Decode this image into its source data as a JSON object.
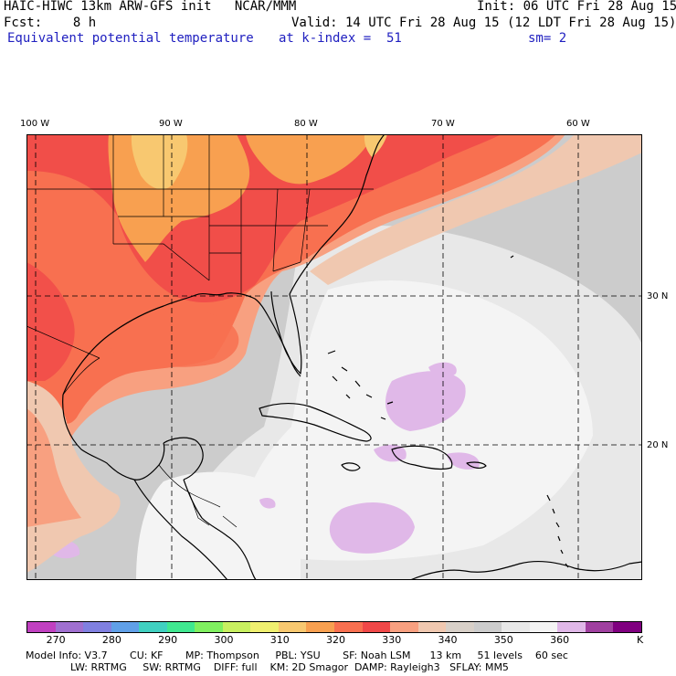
{
  "header": {
    "title_left": "HAIC-HIWC 13km ARW-GFS init   NCAR/MMM",
    "init": "Init: 06 UTC Fri 28 Aug 15",
    "fcst": "Fcst:    8 h",
    "valid": "Valid: 14 UTC Fri 28 Aug 15 (12 LDT Fri 28 Aug 15)",
    "field": "Equivalent potential temperature",
    "level": "at k-index =  51",
    "smooth": "sm= 2"
  },
  "map": {
    "lon_labels": [
      "100 W",
      "90 W",
      "80 W",
      "70 W",
      "60 W"
    ],
    "lat_labels": [
      "30 N",
      "20 N"
    ],
    "lon_values": [
      -100,
      -90,
      -80,
      -70,
      -60
    ],
    "lat_values": [
      30,
      20
    ],
    "extent": {
      "lon_min": -100.6,
      "lon_max": -56.0,
      "lat_min": 11.0,
      "lat_max": 40.6
    },
    "gridlines": "dashed"
  },
  "colorbar": {
    "unit": "K",
    "tick_labels": [
      "270",
      "280",
      "290",
      "300",
      "310",
      "320",
      "330",
      "340",
      "350",
      "360"
    ],
    "colors": [
      "#c040c0",
      "#a070d0",
      "#8080e0",
      "#60a0e8",
      "#40d0c0",
      "#40e890",
      "#80f060",
      "#c8f060",
      "#f0f070",
      "#f8c870",
      "#f8a050",
      "#f87050",
      "#f04848",
      "#f8a080",
      "#f0c8b0",
      "#d8d0c8",
      "#cccccc",
      "#e8e8e8",
      "#f4f4f4",
      "#e0b8e8",
      "#a040a0",
      "#800080"
    ]
  },
  "footer": {
    "line1": "Model Info: V3.7       CU: KF       MP: Thompson     PBL: YSU       SF: Noah LSM      13 km     51 levels    60 sec",
    "line2": "              LW: RRTMG     SW: RRTMG    DIFF: full    KM: 2D Smagor  DAMP: Rayleigh3   SFLAY: MM5"
  }
}
